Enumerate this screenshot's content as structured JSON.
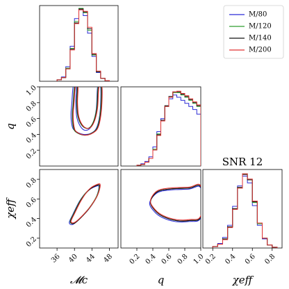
{
  "chart_data": {
    "type": "corner",
    "title": "SNR 12",
    "variables": [
      {
        "key": "mc",
        "label": "𝓜c",
        "lim": [
          32,
          50
        ],
        "ticks": [
          36,
          40,
          44,
          48
        ],
        "tick_labels": [
          "36",
          "40",
          "44",
          "48"
        ]
      },
      {
        "key": "q",
        "label": "q",
        "lim": [
          0.0,
          1.0
        ],
        "ticks": [
          0.2,
          0.4,
          0.6,
          0.8,
          1.0
        ],
        "tick_labels": [
          "0.2",
          "0.4",
          "0.6",
          "0.8",
          "1.0"
        ]
      },
      {
        "key": "chi",
        "label": "χeff",
        "lim": [
          0.1,
          0.9
        ],
        "ticks": [
          0.2,
          0.4,
          0.6,
          0.8
        ],
        "tick_labels": [
          "0.2",
          "0.4",
          "0.6",
          "0.8"
        ]
      }
    ],
    "legend": {
      "placement": "top-right",
      "entries": [
        "M/80",
        "M/120",
        "M/140",
        "M/200"
      ]
    },
    "series": [
      {
        "name": "M/80",
        "color": "#2b2bd6",
        "hist_mc": {
          "edges": [
            36,
            37,
            38,
            39,
            40,
            41,
            42,
            43,
            44,
            45,
            46,
            47,
            48
          ],
          "counts": [
            0.02,
            0.06,
            0.2,
            0.48,
            0.86,
            0.98,
            0.9,
            0.66,
            0.34,
            0.12,
            0.04,
            0.01
          ]
        },
        "hist_q": {
          "edges": [
            0.2,
            0.25,
            0.3,
            0.35,
            0.4,
            0.45,
            0.5,
            0.55,
            0.6,
            0.65,
            0.7,
            0.75,
            0.8,
            0.85,
            0.9,
            0.95,
            1.0
          ],
          "counts": [
            0.01,
            0.03,
            0.06,
            0.12,
            0.25,
            0.45,
            0.62,
            0.78,
            0.88,
            0.93,
            0.9,
            0.86,
            0.82,
            0.78,
            0.74,
            0.68
          ]
        },
        "hist_chi": {
          "edges": [
            0.2,
            0.25,
            0.3,
            0.35,
            0.4,
            0.45,
            0.5,
            0.55,
            0.6,
            0.65,
            0.7,
            0.75,
            0.8,
            0.85
          ],
          "counts": [
            0.02,
            0.06,
            0.14,
            0.3,
            0.55,
            0.82,
            0.95,
            0.86,
            0.56,
            0.3,
            0.12,
            0.04,
            0.01
          ]
        },
        "contour_mc_q": [
          [
            40,
            0.45
          ],
          [
            39.4,
            0.52
          ],
          [
            39.2,
            0.65
          ],
          [
            39.4,
            0.8
          ],
          [
            39.7,
            1.0
          ],
          [
            40.4,
            1.0
          ],
          [
            40.3,
            0.8
          ],
          [
            40.6,
            0.6
          ],
          [
            41.8,
            0.47
          ],
          [
            43.2,
            0.46
          ],
          [
            44.3,
            0.55
          ],
          [
            45,
            0.72
          ],
          [
            45.3,
            1.0
          ],
          [
            46,
            1.0
          ],
          [
            45.9,
            0.7
          ],
          [
            45.2,
            0.5
          ],
          [
            44,
            0.42
          ],
          [
            42,
            0.4
          ]
        ],
        "contour_mc_chi": [
          [
            38.8,
            0.36
          ],
          [
            39.6,
            0.44
          ],
          [
            41.2,
            0.58
          ],
          [
            43,
            0.68
          ],
          [
            45,
            0.73
          ],
          [
            45.6,
            0.72
          ],
          [
            45,
            0.62
          ],
          [
            43.3,
            0.5
          ],
          [
            41.2,
            0.4
          ],
          [
            39.6,
            0.34
          ]
        ],
        "contour_q_chi": [
          [
            0.36,
            0.56
          ],
          [
            0.42,
            0.47
          ],
          [
            0.52,
            0.41
          ],
          [
            0.68,
            0.37
          ],
          [
            0.85,
            0.37
          ],
          [
            1.0,
            0.41
          ],
          [
            1.0,
            0.71
          ],
          [
            0.85,
            0.7
          ],
          [
            0.6,
            0.69
          ],
          [
            0.45,
            0.66
          ]
        ]
      },
      {
        "name": "M/120",
        "color": "#2f9e2f",
        "hist_mc": {
          "edges": [
            36,
            37,
            38,
            39,
            40,
            41,
            42,
            43,
            44,
            45,
            46,
            47,
            48
          ],
          "counts": [
            0.02,
            0.05,
            0.18,
            0.45,
            0.82,
            1.0,
            0.94,
            0.7,
            0.36,
            0.13,
            0.04,
            0.01
          ]
        },
        "hist_q": {
          "edges": [
            0.2,
            0.25,
            0.3,
            0.35,
            0.4,
            0.45,
            0.5,
            0.55,
            0.6,
            0.65,
            0.7,
            0.75,
            0.8,
            0.85,
            0.9,
            0.95,
            1.0
          ],
          "counts": [
            0.01,
            0.02,
            0.05,
            0.1,
            0.22,
            0.42,
            0.6,
            0.78,
            0.9,
            0.96,
            0.96,
            0.93,
            0.9,
            0.86,
            0.82,
            0.78
          ]
        },
        "hist_chi": {
          "edges": [
            0.2,
            0.25,
            0.3,
            0.35,
            0.4,
            0.45,
            0.5,
            0.55,
            0.6,
            0.65,
            0.7,
            0.75,
            0.8,
            0.85
          ],
          "counts": [
            0.02,
            0.05,
            0.12,
            0.28,
            0.52,
            0.8,
            0.98,
            0.9,
            0.6,
            0.32,
            0.13,
            0.04,
            0.01
          ]
        },
        "contour_mc_q": [
          [
            40.3,
            0.43
          ],
          [
            39.7,
            0.5
          ],
          [
            39.5,
            0.65
          ],
          [
            39.7,
            0.8
          ],
          [
            40,
            1.0
          ],
          [
            40.6,
            1.0
          ],
          [
            40.5,
            0.8
          ],
          [
            40.8,
            0.62
          ],
          [
            41.9,
            0.5
          ],
          [
            43.3,
            0.48
          ],
          [
            44.4,
            0.57
          ],
          [
            45.1,
            0.74
          ],
          [
            45.4,
            1.0
          ],
          [
            46.1,
            1.0
          ],
          [
            46,
            0.72
          ],
          [
            45.3,
            0.5
          ],
          [
            44.1,
            0.42
          ],
          [
            42.2,
            0.39
          ]
        ],
        "contour_mc_chi": [
          [
            39,
            0.37
          ],
          [
            39.8,
            0.45
          ],
          [
            41.4,
            0.59
          ],
          [
            43.2,
            0.69
          ],
          [
            45.1,
            0.74
          ],
          [
            45.7,
            0.73
          ],
          [
            45.1,
            0.63
          ],
          [
            43.4,
            0.51
          ],
          [
            41.4,
            0.41
          ],
          [
            39.8,
            0.35
          ]
        ],
        "contour_q_chi": [
          [
            0.37,
            0.57
          ],
          [
            0.43,
            0.48
          ],
          [
            0.53,
            0.42
          ],
          [
            0.69,
            0.38
          ],
          [
            0.86,
            0.38
          ],
          [
            1.0,
            0.42
          ],
          [
            1.0,
            0.72
          ],
          [
            0.85,
            0.71
          ],
          [
            0.6,
            0.7
          ],
          [
            0.45,
            0.67
          ]
        ]
      },
      {
        "name": "M/140",
        "color": "#111111",
        "hist_mc": {
          "edges": [
            36,
            37,
            38,
            39,
            40,
            41,
            42,
            43,
            44,
            45,
            46,
            47,
            48
          ],
          "counts": [
            0.02,
            0.05,
            0.17,
            0.44,
            0.8,
            0.99,
            0.95,
            0.72,
            0.37,
            0.13,
            0.04,
            0.01
          ]
        },
        "hist_q": {
          "edges": [
            0.2,
            0.25,
            0.3,
            0.35,
            0.4,
            0.45,
            0.5,
            0.55,
            0.6,
            0.65,
            0.7,
            0.75,
            0.8,
            0.85,
            0.9,
            0.95,
            1.0
          ],
          "counts": [
            0.01,
            0.02,
            0.05,
            0.1,
            0.21,
            0.41,
            0.6,
            0.79,
            0.91,
            0.97,
            0.97,
            0.94,
            0.91,
            0.87,
            0.83,
            0.79
          ]
        },
        "hist_chi": {
          "edges": [
            0.2,
            0.25,
            0.3,
            0.35,
            0.4,
            0.45,
            0.5,
            0.55,
            0.6,
            0.65,
            0.7,
            0.75,
            0.8,
            0.85
          ],
          "counts": [
            0.02,
            0.05,
            0.12,
            0.28,
            0.52,
            0.8,
            0.97,
            0.9,
            0.61,
            0.33,
            0.13,
            0.04,
            0.01
          ]
        },
        "contour_mc_q": [
          [
            40.4,
            0.43
          ],
          [
            39.8,
            0.5
          ],
          [
            39.6,
            0.65
          ],
          [
            39.8,
            0.8
          ],
          [
            40.1,
            1.0
          ],
          [
            40.7,
            1.0
          ],
          [
            40.6,
            0.8
          ],
          [
            40.9,
            0.62
          ],
          [
            42,
            0.5
          ],
          [
            43.4,
            0.48
          ],
          [
            44.5,
            0.57
          ],
          [
            45.2,
            0.74
          ],
          [
            45.5,
            1.0
          ],
          [
            46.2,
            1.0
          ],
          [
            46.1,
            0.72
          ],
          [
            45.4,
            0.5
          ],
          [
            44.2,
            0.42
          ],
          [
            42.3,
            0.39
          ]
        ],
        "contour_mc_chi": [
          [
            39.1,
            0.37
          ],
          [
            39.9,
            0.45
          ],
          [
            41.5,
            0.59
          ],
          [
            43.3,
            0.69
          ],
          [
            45.2,
            0.74
          ],
          [
            45.8,
            0.73
          ],
          [
            45.2,
            0.63
          ],
          [
            43.5,
            0.51
          ],
          [
            41.5,
            0.41
          ],
          [
            39.9,
            0.35
          ]
        ],
        "contour_q_chi": [
          [
            0.37,
            0.57
          ],
          [
            0.43,
            0.48
          ],
          [
            0.53,
            0.42
          ],
          [
            0.69,
            0.38
          ],
          [
            0.86,
            0.38
          ],
          [
            1.0,
            0.42
          ],
          [
            1.0,
            0.72
          ],
          [
            0.85,
            0.71
          ],
          [
            0.6,
            0.7
          ],
          [
            0.45,
            0.67
          ]
        ]
      },
      {
        "name": "M/200",
        "color": "#e03030",
        "hist_mc": {
          "edges": [
            36,
            37,
            38,
            39,
            40,
            41,
            42,
            43,
            44,
            45,
            46,
            47,
            48
          ],
          "counts": [
            0.02,
            0.05,
            0.17,
            0.43,
            0.79,
            0.98,
            0.96,
            0.74,
            0.38,
            0.14,
            0.04,
            0.01
          ]
        },
        "hist_q": {
          "edges": [
            0.2,
            0.25,
            0.3,
            0.35,
            0.4,
            0.45,
            0.5,
            0.55,
            0.6,
            0.65,
            0.7,
            0.75,
            0.8,
            0.85,
            0.9,
            0.95,
            1.0
          ],
          "counts": [
            0.01,
            0.02,
            0.05,
            0.1,
            0.21,
            0.4,
            0.59,
            0.78,
            0.9,
            0.97,
            0.98,
            0.95,
            0.92,
            0.88,
            0.84,
            0.8
          ]
        },
        "hist_chi": {
          "edges": [
            0.2,
            0.25,
            0.3,
            0.35,
            0.4,
            0.45,
            0.5,
            0.55,
            0.6,
            0.65,
            0.7,
            0.75,
            0.8,
            0.85
          ],
          "counts": [
            0.02,
            0.05,
            0.11,
            0.27,
            0.51,
            0.79,
            0.98,
            0.91,
            0.62,
            0.33,
            0.13,
            0.04,
            0.01
          ]
        },
        "contour_mc_q": [
          [
            40.5,
            0.43
          ],
          [
            39.9,
            0.5
          ],
          [
            39.7,
            0.65
          ],
          [
            39.9,
            0.8
          ],
          [
            40.2,
            1.0
          ],
          [
            40.8,
            1.0
          ],
          [
            40.7,
            0.8
          ],
          [
            41,
            0.62
          ],
          [
            42.1,
            0.5
          ],
          [
            43.5,
            0.48
          ],
          [
            44.6,
            0.57
          ],
          [
            45.3,
            0.74
          ],
          [
            45.6,
            1.0
          ],
          [
            46.3,
            1.0
          ],
          [
            46.2,
            0.72
          ],
          [
            45.5,
            0.5
          ],
          [
            44.3,
            0.42
          ],
          [
            42.4,
            0.39
          ]
        ],
        "contour_mc_chi": [
          [
            39.2,
            0.37
          ],
          [
            40,
            0.45
          ],
          [
            41.6,
            0.59
          ],
          [
            43.4,
            0.7
          ],
          [
            45.3,
            0.75
          ],
          [
            45.9,
            0.74
          ],
          [
            45.3,
            0.64
          ],
          [
            43.6,
            0.52
          ],
          [
            41.6,
            0.42
          ],
          [
            40,
            0.36
          ]
        ],
        "contour_q_chi": [
          [
            0.37,
            0.58
          ],
          [
            0.43,
            0.49
          ],
          [
            0.53,
            0.43
          ],
          [
            0.69,
            0.39
          ],
          [
            0.86,
            0.39
          ],
          [
            1.0,
            0.43
          ],
          [
            1.0,
            0.73
          ],
          [
            0.85,
            0.72
          ],
          [
            0.6,
            0.71
          ],
          [
            0.45,
            0.68
          ]
        ]
      }
    ]
  }
}
